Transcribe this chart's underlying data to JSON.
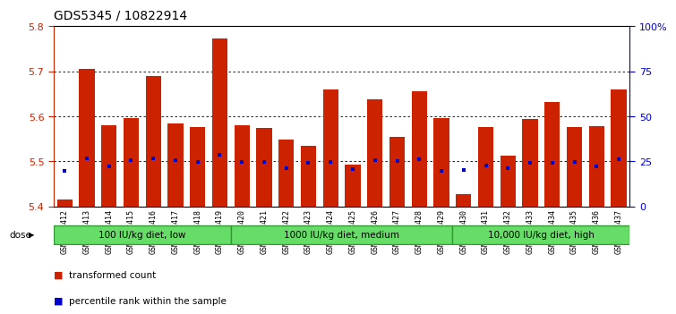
{
  "title": "GDS5345 / 10822914",
  "samples": [
    "GSM1502412",
    "GSM1502413",
    "GSM1502414",
    "GSM1502415",
    "GSM1502416",
    "GSM1502417",
    "GSM1502418",
    "GSM1502419",
    "GSM1502420",
    "GSM1502421",
    "GSM1502422",
    "GSM1502423",
    "GSM1502424",
    "GSM1502425",
    "GSM1502426",
    "GSM1502427",
    "GSM1502428",
    "GSM1502429",
    "GSM1502430",
    "GSM1502431",
    "GSM1502432",
    "GSM1502433",
    "GSM1502434",
    "GSM1502435",
    "GSM1502436",
    "GSM1502437"
  ],
  "bar_tops": [
    5.415,
    5.705,
    5.58,
    5.597,
    5.69,
    5.585,
    5.576,
    5.773,
    5.58,
    5.575,
    5.548,
    5.535,
    5.66,
    5.493,
    5.637,
    5.555,
    5.655,
    5.597,
    5.428,
    5.577,
    5.513,
    5.595,
    5.632,
    5.577,
    5.578,
    5.66
  ],
  "blue_dots": [
    5.479,
    5.507,
    5.489,
    5.503,
    5.507,
    5.502,
    5.499,
    5.515,
    5.499,
    5.499,
    5.484,
    5.497,
    5.499,
    5.483,
    5.503,
    5.5,
    5.505,
    5.479,
    5.48,
    5.491,
    5.485,
    5.496,
    5.497,
    5.498,
    5.489,
    5.504
  ],
  "groups": [
    {
      "label": "100 IU/kg diet, low",
      "start": 0,
      "end": 8
    },
    {
      "label": "1000 IU/kg diet, medium",
      "start": 8,
      "end": 18
    },
    {
      "label": "10,000 IU/kg diet, high",
      "start": 18,
      "end": 26
    }
  ],
  "ylim": [
    5.4,
    5.8
  ],
  "yticks": [
    5.4,
    5.5,
    5.6,
    5.7,
    5.8
  ],
  "right_yticks": [
    0,
    25,
    50,
    75,
    100
  ],
  "right_ytick_labels": [
    "0",
    "25",
    "50",
    "75",
    "100%"
  ],
  "bar_color": "#cc2200",
  "dot_color": "#0000cc",
  "group_bg_color": "#66dd66",
  "title_fontsize": 10,
  "axis_fontsize": 8,
  "xtick_fontsize": 6,
  "group_border_color": "#339933"
}
